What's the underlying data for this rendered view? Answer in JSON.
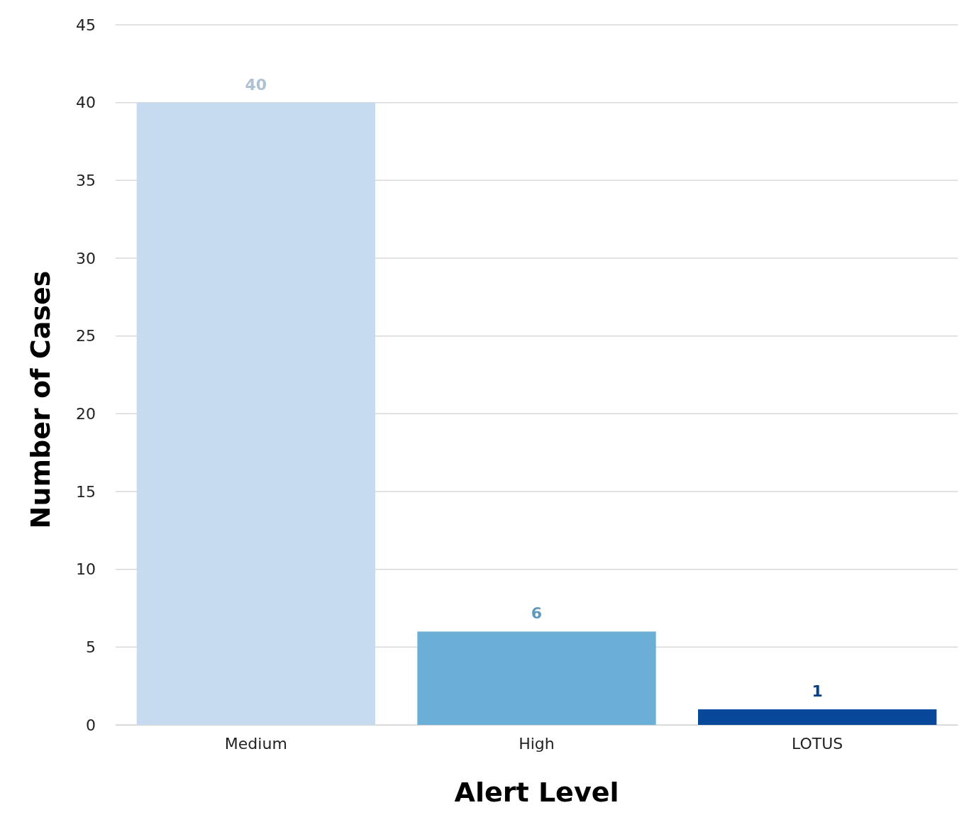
{
  "chart_data": {
    "type": "bar",
    "xlabel": "Alert Level",
    "ylabel": "Number of Cases",
    "categories": [
      "Medium",
      "High",
      "LOTUS"
    ],
    "values": [
      40,
      6,
      1
    ],
    "colors": [
      "#c6dbef",
      "#6baed6",
      "#08489a"
    ],
    "ylim": [
      0,
      45
    ],
    "yticks": [
      0,
      5,
      10,
      15,
      20,
      25,
      30,
      35,
      40,
      45
    ],
    "grid": "y",
    "data_labels": true
  }
}
